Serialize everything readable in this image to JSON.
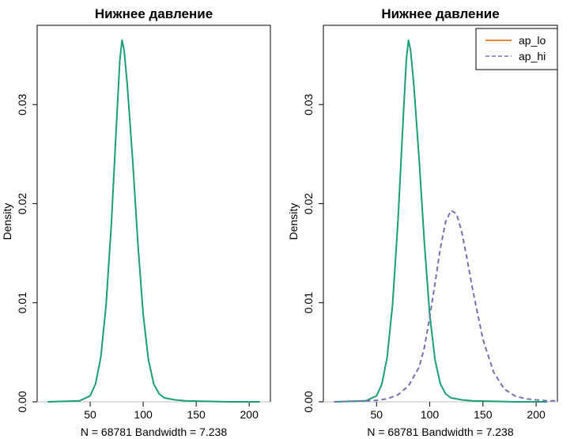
{
  "colors": {
    "ap_lo": "#1a9e77",
    "ap_lo_legend": "#d95f02",
    "ap_hi": "#7570b3",
    "baseline": "#bebebe"
  },
  "chart_data": [
    {
      "type": "line",
      "title": "Нижнее давление",
      "xlabel": "N = 68781   Bandwidth = 7.238",
      "ylabel": "Density",
      "xlim": [
        0,
        220
      ],
      "ylim": [
        0,
        0.038
      ],
      "xticks": [
        50,
        100,
        150,
        200
      ],
      "yticks": [
        0.0,
        0.01,
        0.02,
        0.03
      ],
      "ytick_labels": [
        "0.00",
        "0.01",
        "0.02",
        "0.03"
      ],
      "legend": null,
      "series": [
        {
          "key": "ap_lo",
          "style": "solid",
          "x": [
            10,
            40,
            50,
            55,
            60,
            65,
            70,
            75,
            78,
            80,
            82,
            85,
            90,
            95,
            100,
            105,
            110,
            115,
            120,
            130,
            140,
            160,
            180,
            210
          ],
          "y": [
            0,
            0.0001,
            0.0006,
            0.0018,
            0.0045,
            0.0098,
            0.018,
            0.0285,
            0.0345,
            0.0365,
            0.0355,
            0.032,
            0.0245,
            0.016,
            0.0088,
            0.0042,
            0.0018,
            0.0008,
            0.0004,
            0.0002,
            0.0001,
            5e-05,
            0,
            0
          ]
        }
      ]
    },
    {
      "type": "line",
      "title": "Нижнее давление",
      "xlabel": "N = 68781   Bandwidth = 7.238",
      "ylabel": "Density",
      "xlim": [
        0,
        220
      ],
      "ylim": [
        0,
        0.038
      ],
      "xticks": [
        50,
        100,
        150,
        200
      ],
      "yticks": [
        0.0,
        0.01,
        0.02,
        0.03
      ],
      "ytick_labels": [
        "0.00",
        "0.01",
        "0.02",
        "0.03"
      ],
      "legend": "top-right",
      "series": [
        {
          "key": "ap_lo",
          "name": "ap_lo",
          "style": "solid",
          "x": [
            10,
            40,
            50,
            55,
            60,
            65,
            70,
            75,
            78,
            80,
            82,
            85,
            90,
            95,
            100,
            105,
            110,
            115,
            120,
            130,
            140,
            160,
            180,
            210
          ],
          "y": [
            0,
            0.0001,
            0.0006,
            0.0018,
            0.0045,
            0.0098,
            0.018,
            0.0285,
            0.0345,
            0.0365,
            0.0355,
            0.032,
            0.0245,
            0.016,
            0.0088,
            0.0042,
            0.0018,
            0.0008,
            0.0004,
            0.0002,
            0.0001,
            5e-05,
            0,
            0
          ]
        },
        {
          "key": "ap_hi",
          "name": "ap_hi",
          "style": "dashed",
          "x": [
            10,
            40,
            50,
            60,
            70,
            80,
            90,
            95,
            100,
            105,
            110,
            115,
            120,
            125,
            130,
            135,
            140,
            150,
            160,
            170,
            180,
            190,
            200,
            210,
            220
          ],
          "y": [
            0,
            0.0001,
            0.00015,
            0.0003,
            0.0007,
            0.0016,
            0.0035,
            0.0055,
            0.0085,
            0.012,
            0.0155,
            0.0182,
            0.0193,
            0.019,
            0.0172,
            0.0145,
            0.0115,
            0.0063,
            0.003,
            0.0013,
            0.0006,
            0.0003,
            0.0002,
            0.0001,
            0.0001
          ]
        }
      ]
    }
  ]
}
